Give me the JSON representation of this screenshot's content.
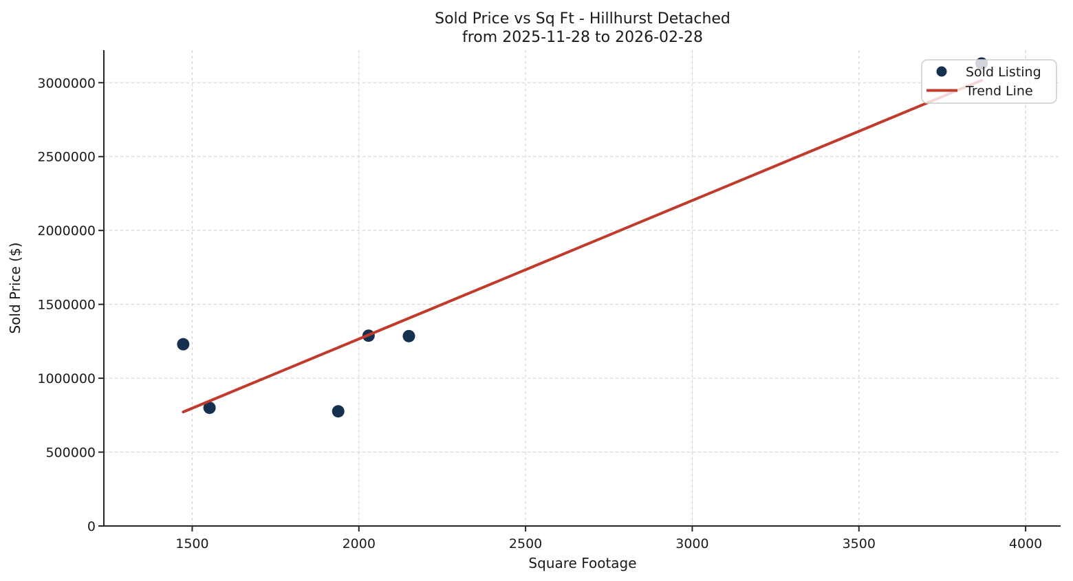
{
  "title": {
    "line1": "Sold Price vs Sq Ft - Hillhurst Detached",
    "line2": "from 2025-11-28 to 2026-02-28"
  },
  "axes": {
    "xlabel": "Square Footage",
    "ylabel": "Sold Price ($)"
  },
  "legend": {
    "items": [
      {
        "label": "Sold Listing",
        "marker": "dot"
      },
      {
        "label": "Trend Line",
        "marker": "line"
      }
    ]
  },
  "chart_data": {
    "type": "scatter",
    "title": "Sold Price vs Sq Ft - Hillhurst Detached\nfrom 2025-11-28 to 2026-02-28",
    "xlabel": "Square Footage",
    "ylabel": "Sold Price ($)",
    "xlim": [
      1235,
      4105
    ],
    "ylim": [
      0,
      3220000
    ],
    "x_ticks": [
      1500,
      2000,
      2500,
      3000,
      3500,
      4000
    ],
    "y_ticks": [
      0,
      500000,
      1000000,
      1500000,
      2000000,
      2500000,
      3000000
    ],
    "grid": true,
    "grid_style": "dashed",
    "legend_position": "upper right",
    "series": [
      {
        "name": "Sold Listing",
        "type": "scatter",
        "color": "#16304f",
        "points": [
          [
            1473,
            1230000
          ],
          [
            1552,
            800000
          ],
          [
            1938,
            776000
          ],
          [
            2029,
            1288000
          ],
          [
            2150,
            1285000
          ],
          [
            3868,
            3130000
          ]
        ]
      },
      {
        "name": "Trend Line",
        "type": "line",
        "color": "#c03b2c",
        "points": [
          [
            1473,
            772000
          ],
          [
            3868,
            3016000
          ]
        ]
      }
    ],
    "colors": {
      "scatter": "#16304f",
      "trend": "#c03b2c",
      "grid": "#cccccc",
      "spine": "#262626",
      "text": "#1a1a1a"
    }
  }
}
